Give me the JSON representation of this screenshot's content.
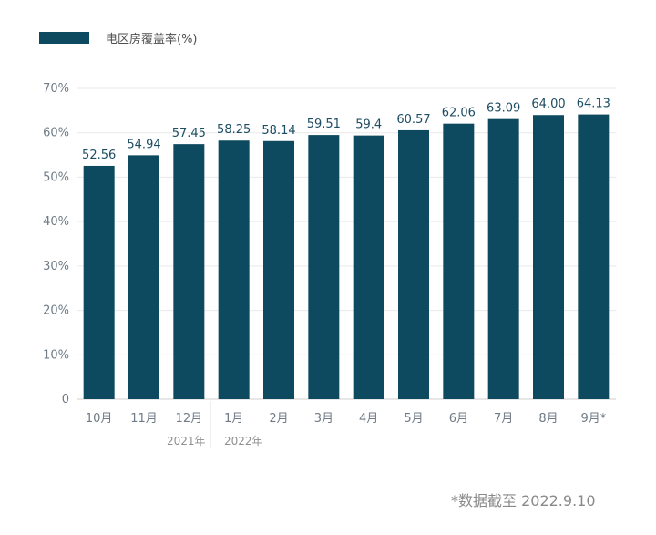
{
  "chart_data": {
    "type": "bar",
    "series": [
      {
        "name": "电区房覆盖率(%)",
        "values": [
          52.56,
          54.94,
          57.45,
          58.25,
          58.14,
          59.51,
          59.4,
          60.57,
          62.06,
          63.09,
          64.0,
          64.13
        ],
        "labels": [
          "52.56",
          "54.94",
          "57.45",
          "58.25",
          "58.14",
          "59.51",
          "59.4",
          "60.57",
          "62.06",
          "63.09",
          "64.00",
          "64.13"
        ]
      }
    ],
    "categories": [
      "10月",
      "11月",
      "12月",
      "1月",
      "2月",
      "3月",
      "4月",
      "5月",
      "6月",
      "7月",
      "8月",
      "9月*"
    ],
    "y_ticks": [
      "0",
      "10%",
      "20%",
      "30%",
      "40%",
      "50%",
      "60%",
      "70%"
    ],
    "ylim": [
      0,
      70
    ],
    "grid": true,
    "legend_position": "top-left",
    "year_labels": [
      "2021年",
      "2022年"
    ],
    "footnote": "*数据截至  2022.9.10",
    "colors": {
      "bar": "#0d4a5f",
      "grid": "#e9e9e9",
      "axis": "#cfcfcf",
      "text": "#6f7b86",
      "label": "#1d4d63"
    }
  }
}
